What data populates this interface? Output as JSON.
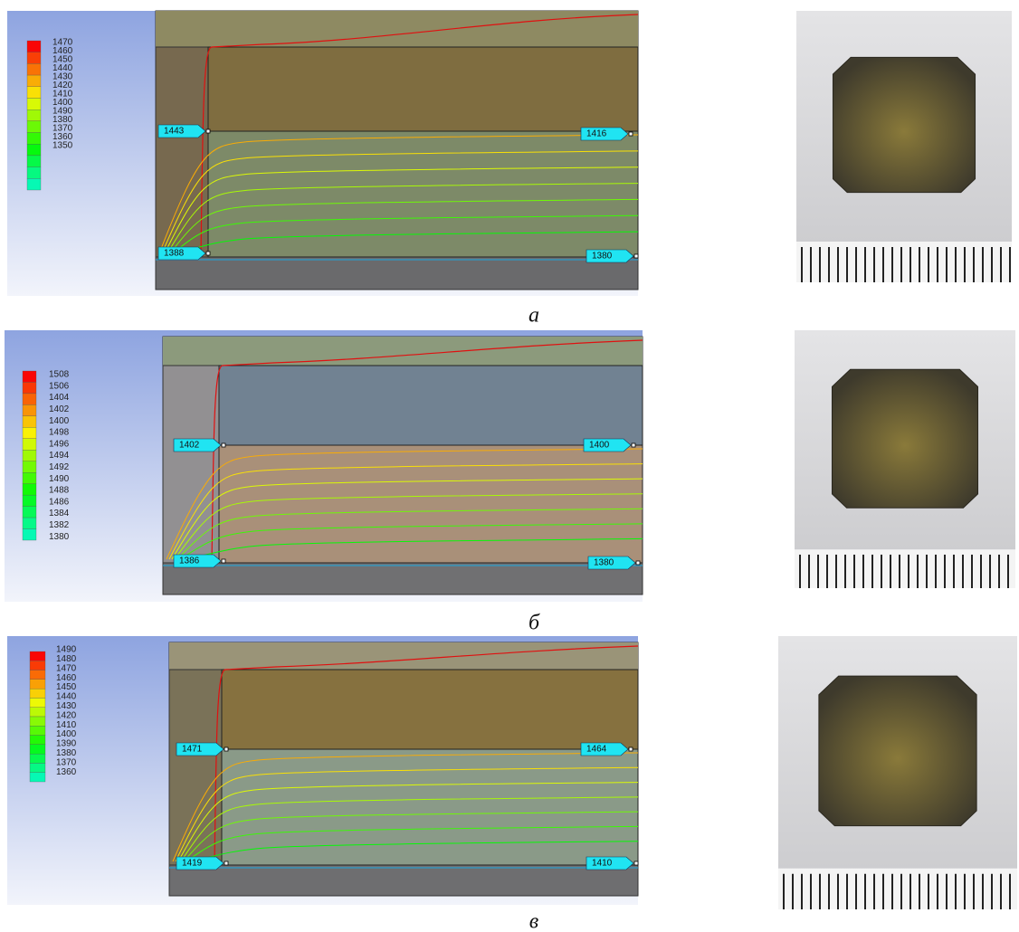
{
  "figure": {
    "panels": [
      {
        "legend": [
          "1470",
          "1460",
          "1450",
          "1440",
          "1430",
          "1420",
          "1410",
          "1400",
          "1490",
          "1380",
          "1370",
          "1360",
          "1350"
        ],
        "probes": [
          "1443",
          "1416",
          "1388",
          "1380"
        ],
        "caption": "а"
      },
      {
        "legend": [
          "1508",
          "1506",
          "1404",
          "1402",
          "1400",
          "1498",
          "1496",
          "1494",
          "1492",
          "1490",
          "1488",
          "1486",
          "1384",
          "1382",
          "1380"
        ],
        "probes": [
          "1402",
          "1400",
          "1386",
          "1380"
        ],
        "caption": "б"
      },
      {
        "legend": [
          "1490",
          "1480",
          "1470",
          "1460",
          "1450",
          "1440",
          "1430",
          "1420",
          "1410",
          "1400",
          "1390",
          "1380",
          "1370",
          "1360"
        ],
        "probes": [
          "1471",
          "1464",
          "1419",
          "1410"
        ],
        "caption": "в"
      }
    ]
  }
}
